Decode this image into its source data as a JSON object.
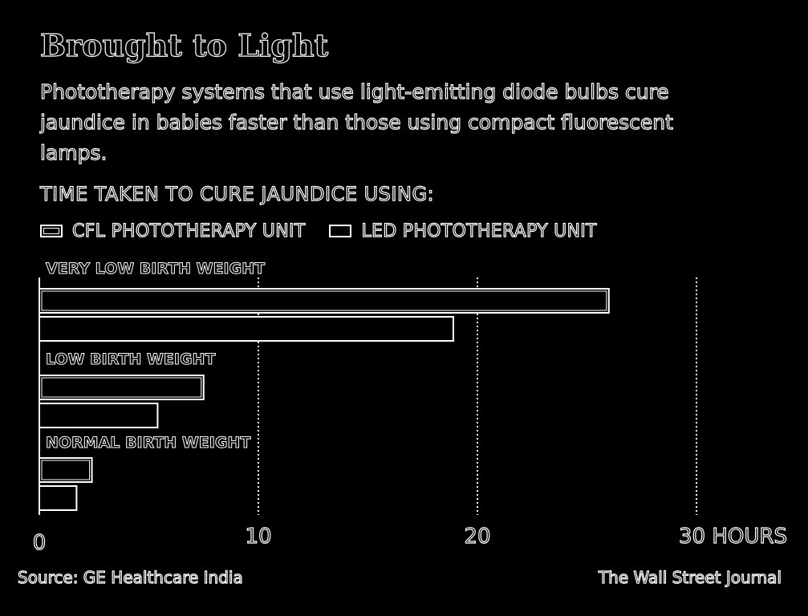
{
  "header": {
    "title": "Brought to Light",
    "subtitle": "Phototherapy systems that use light-emitting diode bulbs cure jaundice in babies faster than those using compact fluorescent lamps.",
    "chart_label": "TIME TAKEN TO CURE JAUNDICE USING:"
  },
  "legend": {
    "items": [
      {
        "label": "CFL PHOTOTHERAPY UNIT"
      },
      {
        "label": "LED PHOTOTHERAPY UNIT"
      }
    ]
  },
  "footer": {
    "source": "Source: GE Healthcare India",
    "credit": "The Wall Street Journal"
  },
  "colors": {
    "background": "#000000",
    "stroke": "#ffffff"
  },
  "chart_data": {
    "type": "bar",
    "orientation": "horizontal",
    "categories": [
      "VERY LOW BIRTH WEIGHT",
      "LOW BIRTH WEIGHT",
      "NORMAL BIRTH WEIGHT"
    ],
    "series": [
      {
        "name": "CFL PHOTOTHERAPY UNIT",
        "values": [
          26,
          7.5,
          2.4
        ]
      },
      {
        "name": "LED PHOTOTHERAPY UNIT",
        "values": [
          18.9,
          5.4,
          1.7
        ]
      }
    ],
    "xlim": [
      0,
      30
    ],
    "xticks": [
      0,
      10,
      20,
      30
    ],
    "xtick_labels": [
      "0",
      "10",
      "20",
      "30 HOURS"
    ],
    "grid": "vertical dotted",
    "legend_position": "top-left"
  }
}
